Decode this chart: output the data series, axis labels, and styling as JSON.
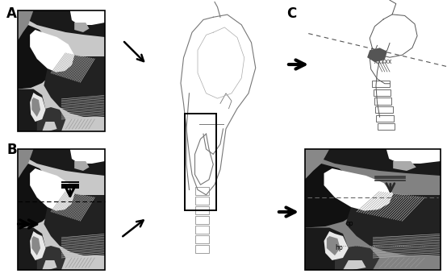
{
  "background_color": "#ffffff",
  "label_A": "A",
  "label_B": "B",
  "label_C": "C",
  "label_op": "op",
  "label_hp": "hp"
}
